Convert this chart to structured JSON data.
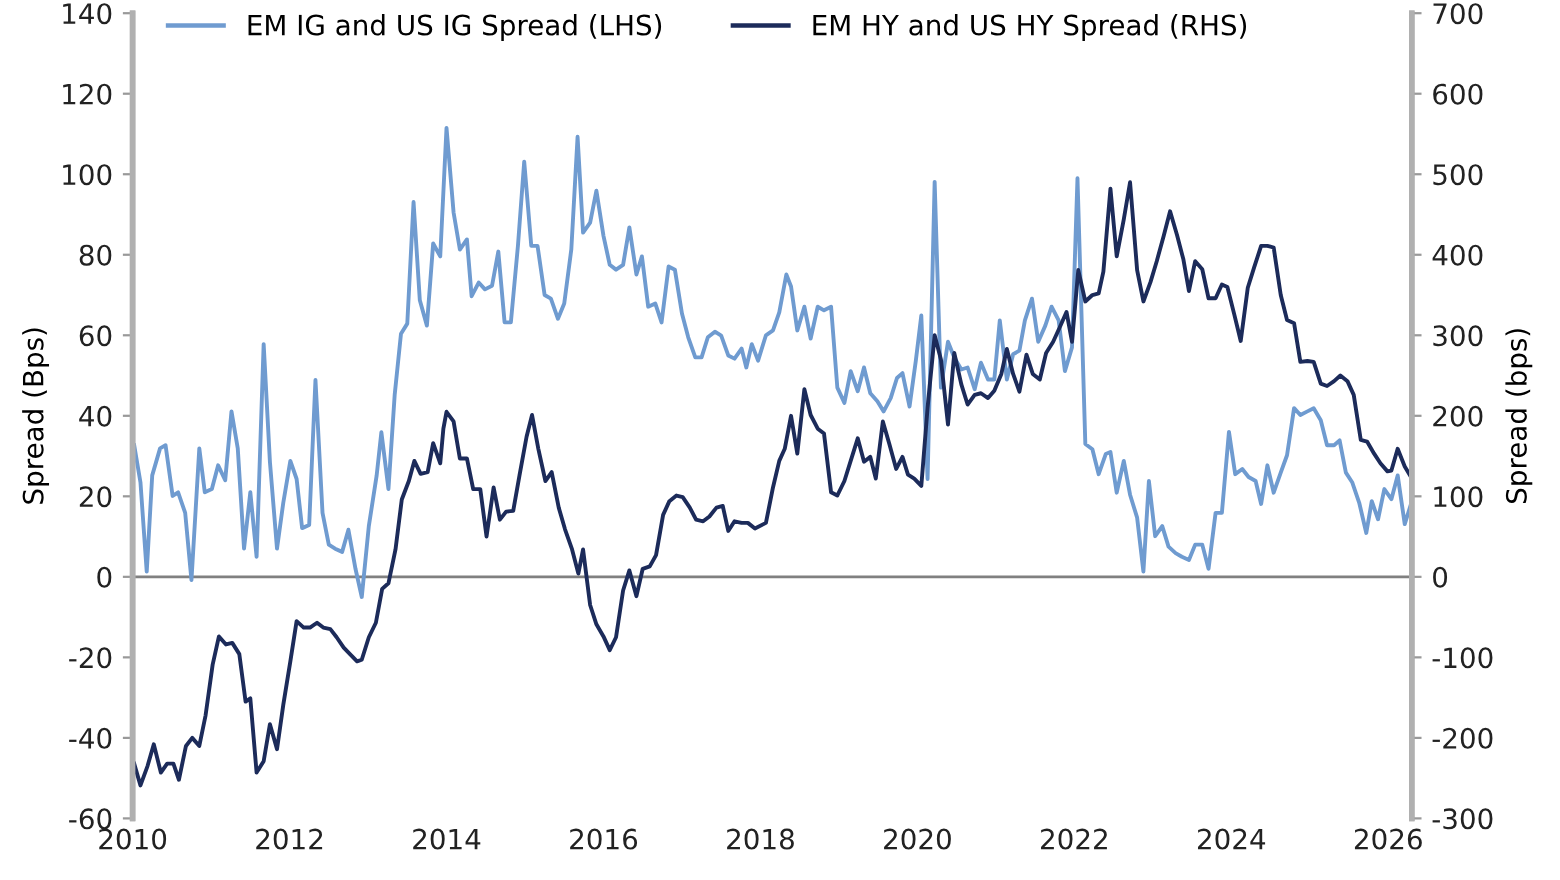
{
  "chart_data": {
    "type": "line",
    "xlabel": null,
    "ylabel": "Spread (Bps)",
    "y2label": "Spread (bps)",
    "xlim": [
      2010,
      2026.3
    ],
    "xticks": [
      2010,
      2012,
      2014,
      2016,
      2018,
      2020,
      2022,
      2024,
      2026
    ],
    "ylim": [
      -60,
      140
    ],
    "yticks": [
      -60,
      -40,
      -20,
      0,
      20,
      40,
      60,
      80,
      100,
      120,
      140
    ],
    "y2lim": [
      -300,
      700
    ],
    "y2ticks": [
      -300,
      -200,
      -100,
      0,
      100,
      200,
      300,
      400,
      500,
      600,
      700
    ],
    "grid": false,
    "legend": "top",
    "marker": "none",
    "line_style": "solid",
    "ref_lines": [
      {
        "axis": "y",
        "value": 0,
        "label": null,
        "color": "#808080"
      }
    ],
    "series": [
      {
        "name": "EM IG and US IG Spread (LHS)",
        "color": "#6f9bd0",
        "axis": "y",
        "x": [
          2010.02,
          2010.1,
          2010.18,
          2010.25,
          2010.35,
          2010.42,
          2010.51,
          2010.58,
          2010.67,
          2010.75,
          2010.85,
          2010.92,
          2011.01,
          2011.09,
          2011.18,
          2011.26,
          2011.34,
          2011.42,
          2011.5,
          2011.58,
          2011.67,
          2011.75,
          2011.84,
          2011.92,
          2012.01,
          2012.09,
          2012.16,
          2012.25,
          2012.33,
          2012.42,
          2012.5,
          2012.58,
          2012.67,
          2012.75,
          2012.84,
          2012.92,
          2013.01,
          2013.11,
          2013.17,
          2013.26,
          2013.34,
          2013.42,
          2013.5,
          2013.58,
          2013.66,
          2013.75,
          2013.83,
          2013.92,
          2014.0,
          2014.09,
          2014.17,
          2014.26,
          2014.32,
          2014.41,
          2014.49,
          2014.58,
          2014.66,
          2014.74,
          2014.82,
          2014.91,
          2014.99,
          2015.08,
          2015.16,
          2015.25,
          2015.33,
          2015.42,
          2015.5,
          2015.59,
          2015.67,
          2015.74,
          2015.83,
          2015.91,
          2016.0,
          2016.08,
          2016.16,
          2016.25,
          2016.33,
          2016.42,
          2016.49,
          2016.57,
          2016.66,
          2016.74,
          2016.83,
          2016.91,
          2017.0,
          2017.08,
          2017.17,
          2017.25,
          2017.33,
          2017.42,
          2017.5,
          2017.59,
          2017.67,
          2017.76,
          2017.82,
          2017.89,
          2017.97,
          2018.07,
          2018.16,
          2018.24,
          2018.33,
          2018.39,
          2018.47,
          2018.56,
          2018.64,
          2018.73,
          2018.81,
          2018.9,
          2018.98,
          2019.07,
          2019.15,
          2019.24,
          2019.32,
          2019.4,
          2019.49,
          2019.57,
          2019.66,
          2019.74,
          2019.81,
          2019.9,
          2019.98,
          2020.05,
          2020.13,
          2020.22,
          2020.3,
          2020.39,
          2020.47,
          2020.56,
          2020.64,
          2020.73,
          2020.81,
          2020.9,
          2020.98,
          2021.05,
          2021.14,
          2021.22,
          2021.3,
          2021.37,
          2021.46,
          2021.54,
          2021.63,
          2021.71,
          2021.8,
          2021.88,
          2021.97,
          2022.04,
          2022.14,
          2022.23,
          2022.31,
          2022.4,
          2022.46,
          2022.54,
          2022.63,
          2022.71,
          2022.8,
          2022.88,
          2022.95,
          2023.03,
          2023.12,
          2023.2,
          2023.29,
          2023.37,
          2023.46,
          2023.54,
          2023.63,
          2023.71,
          2023.8,
          2023.88,
          2023.97,
          2024.05,
          2024.14,
          2024.22,
          2024.31,
          2024.38,
          2024.46,
          2024.54,
          2024.63,
          2024.71,
          2024.8,
          2024.88,
          2024.97,
          2025.05,
          2025.14,
          2025.22,
          2025.31,
          2025.38,
          2025.46,
          2025.54,
          2025.63,
          2025.72,
          2025.79,
          2025.87,
          2025.95,
          2026.04,
          2026.12,
          2026.21,
          2026.29
        ],
        "values": [
          32.7,
          23.5,
          1.3,
          25.2,
          31.9,
          32.7,
          20.1,
          21.0,
          15.9,
          -0.8,
          31.9,
          21.0,
          21.8,
          27.7,
          24.0,
          41.1,
          31.9,
          7.0,
          21.0,
          5.0,
          57.8,
          28.5,
          7.0,
          18.4,
          28.8,
          24.3,
          12.1,
          12.9,
          48.9,
          15.9,
          8.0,
          7.0,
          6.2,
          11.7,
          2.0,
          -5.0,
          12.6,
          25.2,
          35.9,
          21.8,
          45.3,
          60.4,
          62.9,
          93.1,
          68.7,
          62.4,
          82.8,
          79.6,
          111.5,
          90.5,
          81.3,
          83.8,
          69.7,
          73.1,
          71.4,
          72.3,
          80.8,
          63.2,
          63.2,
          82.2,
          103.1,
          82.2,
          82.2,
          70.0,
          69.1,
          64.1,
          67.9,
          81.3,
          109.3,
          85.5,
          88.0,
          95.9,
          84.7,
          77.5,
          76.3,
          77.5,
          86.8,
          75.1,
          79.6,
          67.1,
          67.9,
          63.2,
          77.1,
          76.3,
          65.4,
          59.5,
          54.5,
          54.5,
          59.5,
          60.9,
          59.9,
          55.0,
          54.2,
          56.7,
          52.0,
          57.8,
          53.7,
          60.0,
          61.2,
          65.7,
          75.1,
          72.1,
          61.2,
          67.1,
          59.2,
          67.1,
          66.2,
          67.1,
          47.0,
          43.2,
          51.1,
          46.1,
          52.0,
          45.6,
          43.6,
          41.1,
          44.4,
          49.4,
          50.6,
          42.3,
          53.7,
          64.9,
          24.3,
          98.1,
          47.0,
          58.4,
          54.5,
          51.5,
          52.0,
          46.6,
          53.2,
          49.0,
          49.0,
          63.7,
          49.0,
          55.3,
          56.2,
          63.7,
          69.1,
          58.4,
          62.4,
          67.1,
          63.7,
          51.1,
          57.0,
          99.0,
          33.0,
          31.7,
          25.5,
          30.5,
          31.0,
          20.9,
          28.8,
          20.4,
          14.7,
          1.3,
          23.8,
          10.1,
          12.6,
          7.5,
          5.9,
          5.0,
          4.2,
          8.0,
          8.0,
          2.0,
          15.9,
          15.9,
          36.0,
          25.5,
          26.8,
          24.8,
          23.8,
          18.1,
          27.7,
          20.9,
          25.9,
          30.2,
          41.9,
          40.2,
          41.1,
          41.9,
          38.9,
          32.7,
          32.7,
          33.9,
          25.9,
          23.5,
          18.4,
          10.9,
          18.8,
          14.3,
          21.8,
          19.3,
          25.2,
          13.1,
          18.1
        ]
      },
      {
        "name": "EM HY and US HY Spread (RHS)",
        "color": "#1c2b5a",
        "axis": "y2",
        "x": [
          2010.02,
          2010.1,
          2010.19,
          2010.27,
          2010.36,
          2010.44,
          2010.52,
          2010.59,
          2010.68,
          2010.76,
          2010.85,
          2010.93,
          2011.02,
          2011.1,
          2011.19,
          2011.27,
          2011.36,
          2011.44,
          2011.5,
          2011.58,
          2011.67,
          2011.75,
          2011.84,
          2011.92,
          2012.01,
          2012.09,
          2012.18,
          2012.26,
          2012.35,
          2012.43,
          2012.52,
          2012.6,
          2012.69,
          2012.77,
          2012.86,
          2012.92,
          2013.01,
          2013.1,
          2013.18,
          2013.26,
          2013.35,
          2013.43,
          2013.52,
          2013.59,
          2013.67,
          2013.76,
          2013.83,
          2013.92,
          2013.96,
          2014.0,
          2014.09,
          2014.17,
          2014.26,
          2014.34,
          2014.43,
          2014.51,
          2014.6,
          2014.68,
          2014.76,
          2014.85,
          2014.93,
          2015.02,
          2015.09,
          2015.17,
          2015.26,
          2015.34,
          2015.43,
          2015.51,
          2015.6,
          2015.68,
          2015.74,
          2015.83,
          2015.91,
          2016.0,
          2016.08,
          2016.16,
          2016.25,
          2016.33,
          2016.42,
          2016.5,
          2016.59,
          2016.67,
          2016.76,
          2016.84,
          2016.93,
          2017.01,
          2017.1,
          2017.18,
          2017.27,
          2017.35,
          2017.44,
          2017.52,
          2017.59,
          2017.67,
          2017.76,
          2017.84,
          2017.93,
          2018.07,
          2018.16,
          2018.24,
          2018.31,
          2018.39,
          2018.47,
          2018.56,
          2018.64,
          2018.73,
          2018.81,
          2018.9,
          2018.98,
          2019.07,
          2019.15,
          2019.24,
          2019.32,
          2019.4,
          2019.47,
          2019.56,
          2019.64,
          2019.73,
          2019.81,
          2019.88,
          2019.96,
          2020.05,
          2020.13,
          2020.22,
          2020.3,
          2020.39,
          2020.47,
          2020.56,
          2020.64,
          2020.73,
          2020.81,
          2020.9,
          2020.98,
          2021.07,
          2021.14,
          2021.22,
          2021.3,
          2021.39,
          2021.47,
          2021.56,
          2021.64,
          2021.73,
          2021.81,
          2021.9,
          2021.97,
          2022.05,
          2022.14,
          2022.23,
          2022.31,
          2022.37,
          2022.46,
          2022.54,
          2022.63,
          2022.71,
          2022.8,
          2022.88,
          2022.97,
          2023.05,
          2023.14,
          2023.22,
          2023.31,
          2023.39,
          2023.46,
          2023.54,
          2023.63,
          2023.71,
          2023.8,
          2023.88,
          2023.95,
          2024.04,
          2024.12,
          2024.21,
          2024.29,
          2024.38,
          2024.46,
          2024.54,
          2024.63,
          2024.71,
          2024.8,
          2024.88,
          2024.97,
          2025.05,
          2025.14,
          2025.22,
          2025.31,
          2025.39,
          2025.48,
          2025.56,
          2025.65,
          2025.73,
          2025.82,
          2025.9,
          2025.99,
          2026.04,
          2026.12,
          2026.21,
          2026.29
        ],
        "values": [
          -232,
          -259,
          -235,
          -208,
          -243,
          -232,
          -232,
          -252,
          -210,
          -200,
          -210,
          -172,
          -109,
          -74,
          -84,
          -82,
          -96,
          -155,
          -151,
          -243,
          -229,
          -183,
          -214,
          -159,
          -105,
          -55,
          -63,
          -63,
          -57,
          -63,
          -65,
          -75,
          -88,
          -96,
          -105,
          -103,
          -75,
          -57,
          -15,
          -8,
          34,
          96,
          119,
          144,
          128,
          130,
          166,
          141,
          184,
          205,
          193,
          147,
          147,
          109,
          109,
          50,
          111,
          71,
          81,
          82,
          126,
          174,
          201,
          159,
          119,
          130,
          86,
          59,
          34,
          4,
          34,
          -35,
          -59,
          -74,
          -91,
          -75,
          -17,
          8,
          -24,
          10,
          13,
          27,
          77,
          94,
          101,
          99,
          86,
          71,
          69,
          75,
          86,
          88,
          57,
          69,
          67,
          67,
          60,
          67,
          111,
          144,
          159,
          200,
          153,
          233,
          201,
          184,
          178,
          105,
          101,
          119,
          144,
          172,
          143,
          149,
          122,
          193,
          166,
          134,
          149,
          127,
          122,
          113,
          210,
          300,
          270,
          189,
          278,
          239,
          214,
          226,
          228,
          222,
          231,
          252,
          283,
          252,
          230,
          276,
          252,
          245,
          278,
          292,
          309,
          329,
          292,
          381,
          342,
          350,
          352,
          379,
          482,
          398,
          444,
          490,
          381,
          342,
          366,
          392,
          424,
          454,
          424,
          394,
          355,
          392,
          382,
          346,
          346,
          363,
          360,
          325,
          293,
          359,
          384,
          411,
          411,
          409,
          350,
          319,
          315,
          267,
          268,
          267,
          240,
          237,
          243,
          250,
          243,
          226,
          170,
          168,
          153,
          141,
          131,
          132,
          159,
          137,
          124
        ]
      }
    ]
  }
}
